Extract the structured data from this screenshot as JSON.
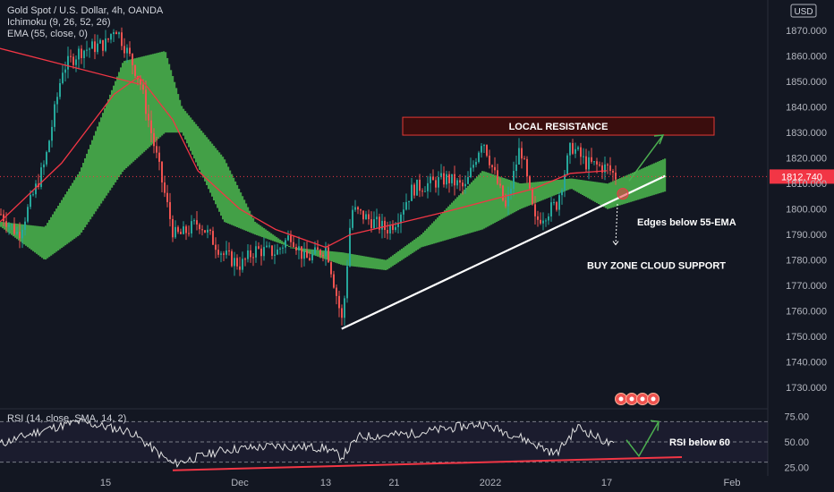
{
  "header": {
    "symbol_line": "Gold Spot / U.S. Dollar, 4h, OANDA",
    "ichimoku_line": "Ichimoku (9, 26, 52, 26)",
    "ema_line": "EMA (55, close, 0)",
    "currency_badge": "USD",
    "last_price": "1812.740"
  },
  "rsi_header": "RSI (14, close, SMA, 14, 2)",
  "annotations": {
    "resistance": "LOCAL RESISTANCE",
    "edges": "Edges below 55-EMA",
    "buy_zone": "BUY ZONE CLOUD SUPPORT",
    "rsi": "RSI below 60"
  },
  "colors": {
    "background": "#131722",
    "up_candle": "#26a69a",
    "down_candle": "#ef5350",
    "cloud_bull": "#43a047",
    "cloud_bear": "#ff8c1a",
    "ema": "#f23645",
    "last_price": "#f23645",
    "resistance_fill": "#3a0d0d",
    "resistance_border": "#e53935",
    "trendline": "#ffffff",
    "arrow": "#4caf50"
  },
  "chart_data": [
    {
      "type": "candlestick",
      "x_axis_ticks": [
        "15",
        "Dec",
        "13",
        "21",
        "2022",
        "17",
        "Feb"
      ],
      "y_axis_ticks": [
        1730,
        1740,
        1750,
        1760,
        1770,
        1780,
        1790,
        1800,
        1810,
        1820,
        1830,
        1840,
        1850,
        1860,
        1870
      ],
      "y_axis_tick_labels": [
        "1730.000",
        "1740.000",
        "1750.000",
        "1760.000",
        "1770.000",
        "1780.000",
        "1790.000",
        "1800.000",
        "1810.000",
        "1820.000",
        "1830.000",
        "1840.000",
        "1850.000",
        "1860.000",
        "1870.000"
      ],
      "ylim": [
        1722,
        1882
      ],
      "last_price": 1812.74,
      "price_path": [
        {
          "x": "Nov 3",
          "y": 1798
        },
        {
          "x": "Nov 5",
          "y": 1790
        },
        {
          "x": "Nov 8",
          "y": 1818
        },
        {
          "x": "Nov 10",
          "y": 1855
        },
        {
          "x": "Nov 12",
          "y": 1862
        },
        {
          "x": "Nov 15",
          "y": 1865
        },
        {
          "x": "Nov 16",
          "y": 1872
        },
        {
          "x": "Nov 18",
          "y": 1858
        },
        {
          "x": "Nov 19",
          "y": 1850
        },
        {
          "x": "Nov 22",
          "y": 1805
        },
        {
          "x": "Nov 23",
          "y": 1790
        },
        {
          "x": "Nov 24",
          "y": 1790
        },
        {
          "x": "Nov 26",
          "y": 1795
        },
        {
          "x": "Nov 29",
          "y": 1782
        },
        {
          "x": "Dec 1",
          "y": 1778
        },
        {
          "x": "Dec 3",
          "y": 1784
        },
        {
          "x": "Dec 6",
          "y": 1783
        },
        {
          "x": "Dec 8",
          "y": 1790
        },
        {
          "x": "Dec 10",
          "y": 1780
        },
        {
          "x": "Dec 13",
          "y": 1785
        },
        {
          "x": "Dec 15",
          "y": 1755
        },
        {
          "x": "Dec 16",
          "y": 1800
        },
        {
          "x": "Dec 17",
          "y": 1798
        },
        {
          "x": "Dec 20",
          "y": 1792
        },
        {
          "x": "Dec 21",
          "y": 1795
        },
        {
          "x": "Dec 23",
          "y": 1808
        },
        {
          "x": "Dec 27",
          "y": 1812
        },
        {
          "x": "Dec 29",
          "y": 1808
        },
        {
          "x": "Dec 31",
          "y": 1828
        },
        {
          "x": "Jan 3",
          "y": 1800
        },
        {
          "x": "Jan 5",
          "y": 1825
        },
        {
          "x": "Jan 7",
          "y": 1795
        },
        {
          "x": "Jan 10",
          "y": 1802
        },
        {
          "x": "Jan 12",
          "y": 1825
        },
        {
          "x": "Jan 14",
          "y": 1818
        },
        {
          "x": "Jan 17",
          "y": 1816
        },
        {
          "x": "Jan 18",
          "y": 1812.74
        }
      ],
      "ema_55": [
        {
          "x": "Nov 3",
          "y": 1795
        },
        {
          "x": "Nov 10",
          "y": 1818
        },
        {
          "x": "Nov 16",
          "y": 1845
        },
        {
          "x": "Nov 19",
          "y": 1852
        },
        {
          "x": "Nov 23",
          "y": 1835
        },
        {
          "x": "Nov 26",
          "y": 1815
        },
        {
          "x": "Dec 1",
          "y": 1800
        },
        {
          "x": "Dec 6",
          "y": 1792
        },
        {
          "x": "Dec 13",
          "y": 1785
        },
        {
          "x": "Dec 16",
          "y": 1790
        },
        {
          "x": "Dec 21",
          "y": 1794
        },
        {
          "x": "Dec 27",
          "y": 1799
        },
        {
          "x": "Jan 3",
          "y": 1805
        },
        {
          "x": "Jan 7",
          "y": 1808
        },
        {
          "x": "Jan 12",
          "y": 1814
        },
        {
          "x": "Jan 17",
          "y": 1815
        }
      ],
      "cloud_span_a": [
        {
          "x": "Nov 3",
          "y": 1795
        },
        {
          "x": "Nov 8",
          "y": 1793
        },
        {
          "x": "Nov 12",
          "y": 1815
        },
        {
          "x": "Nov 17",
          "y": 1858
        },
        {
          "x": "Nov 22",
          "y": 1862
        },
        {
          "x": "Nov 24",
          "y": 1840
        },
        {
          "x": "Nov 29",
          "y": 1820
        },
        {
          "x": "Dec 3",
          "y": 1795
        },
        {
          "x": "Dec 8",
          "y": 1785
        },
        {
          "x": "Dec 15",
          "y": 1783
        },
        {
          "x": "Dec 20",
          "y": 1780
        },
        {
          "x": "Dec 24",
          "y": 1790
        },
        {
          "x": "Dec 31",
          "y": 1815
        },
        {
          "x": "Jan 5",
          "y": 1810
        },
        {
          "x": "Jan 12",
          "y": 1812
        },
        {
          "x": "Jan 17",
          "y": 1810
        },
        {
          "x": "Jan 24",
          "y": 1820
        }
      ],
      "cloud_span_b": [
        {
          "x": "Nov 3",
          "y": 1793
        },
        {
          "x": "Nov 8",
          "y": 1780
        },
        {
          "x": "Nov 12",
          "y": 1790
        },
        {
          "x": "Nov 17",
          "y": 1815
        },
        {
          "x": "Nov 22",
          "y": 1830
        },
        {
          "x": "Nov 24",
          "y": 1830
        },
        {
          "x": "Nov 29",
          "y": 1795
        },
        {
          "x": "Dec 3",
          "y": 1790
        },
        {
          "x": "Dec 8",
          "y": 1785
        },
        {
          "x": "Dec 15",
          "y": 1778
        },
        {
          "x": "Dec 20",
          "y": 1776
        },
        {
          "x": "Dec 24",
          "y": 1785
        },
        {
          "x": "Dec 31",
          "y": 1792
        },
        {
          "x": "Jan 5",
          "y": 1800
        },
        {
          "x": "Jan 12",
          "y": 1808
        },
        {
          "x": "Jan 17",
          "y": 1800
        },
        {
          "x": "Jan 24",
          "y": 1807
        }
      ],
      "resistance_zone": [
        1829,
        1836
      ],
      "trendline": [
        {
          "x": "Dec 15",
          "y": 1753
        },
        {
          "x": "Jan 24",
          "y": 1813
        }
      ]
    },
    {
      "type": "line",
      "name": "RSI",
      "y_axis_tick_labels": [
        "25.00",
        "50.00",
        "75.00"
      ],
      "ylim": [
        20,
        80
      ],
      "bands": [
        30,
        50,
        70
      ],
      "rsi_path": [
        {
          "x": "Nov 3",
          "y": 48
        },
        {
          "x": "Nov 8",
          "y": 62
        },
        {
          "x": "Nov 12",
          "y": 70
        },
        {
          "x": "Nov 18",
          "y": 60
        },
        {
          "x": "Nov 23",
          "y": 28
        },
        {
          "x": "Nov 29",
          "y": 42
        },
        {
          "x": "Dec 6",
          "y": 46
        },
        {
          "x": "Dec 13",
          "y": 44
        },
        {
          "x": "Dec 15",
          "y": 35
        },
        {
          "x": "Dec 17",
          "y": 55
        },
        {
          "x": "Dec 23",
          "y": 58
        },
        {
          "x": "Dec 31",
          "y": 68
        },
        {
          "x": "Jan 5",
          "y": 55
        },
        {
          "x": "Jan 10",
          "y": 38
        },
        {
          "x": "Jan 13",
          "y": 65
        },
        {
          "x": "Jan 18",
          "y": 45
        }
      ],
      "support_line": [
        {
          "x": "Nov 23",
          "y": 22
        },
        {
          "x": "Jan 26",
          "y": 35
        }
      ]
    }
  ]
}
